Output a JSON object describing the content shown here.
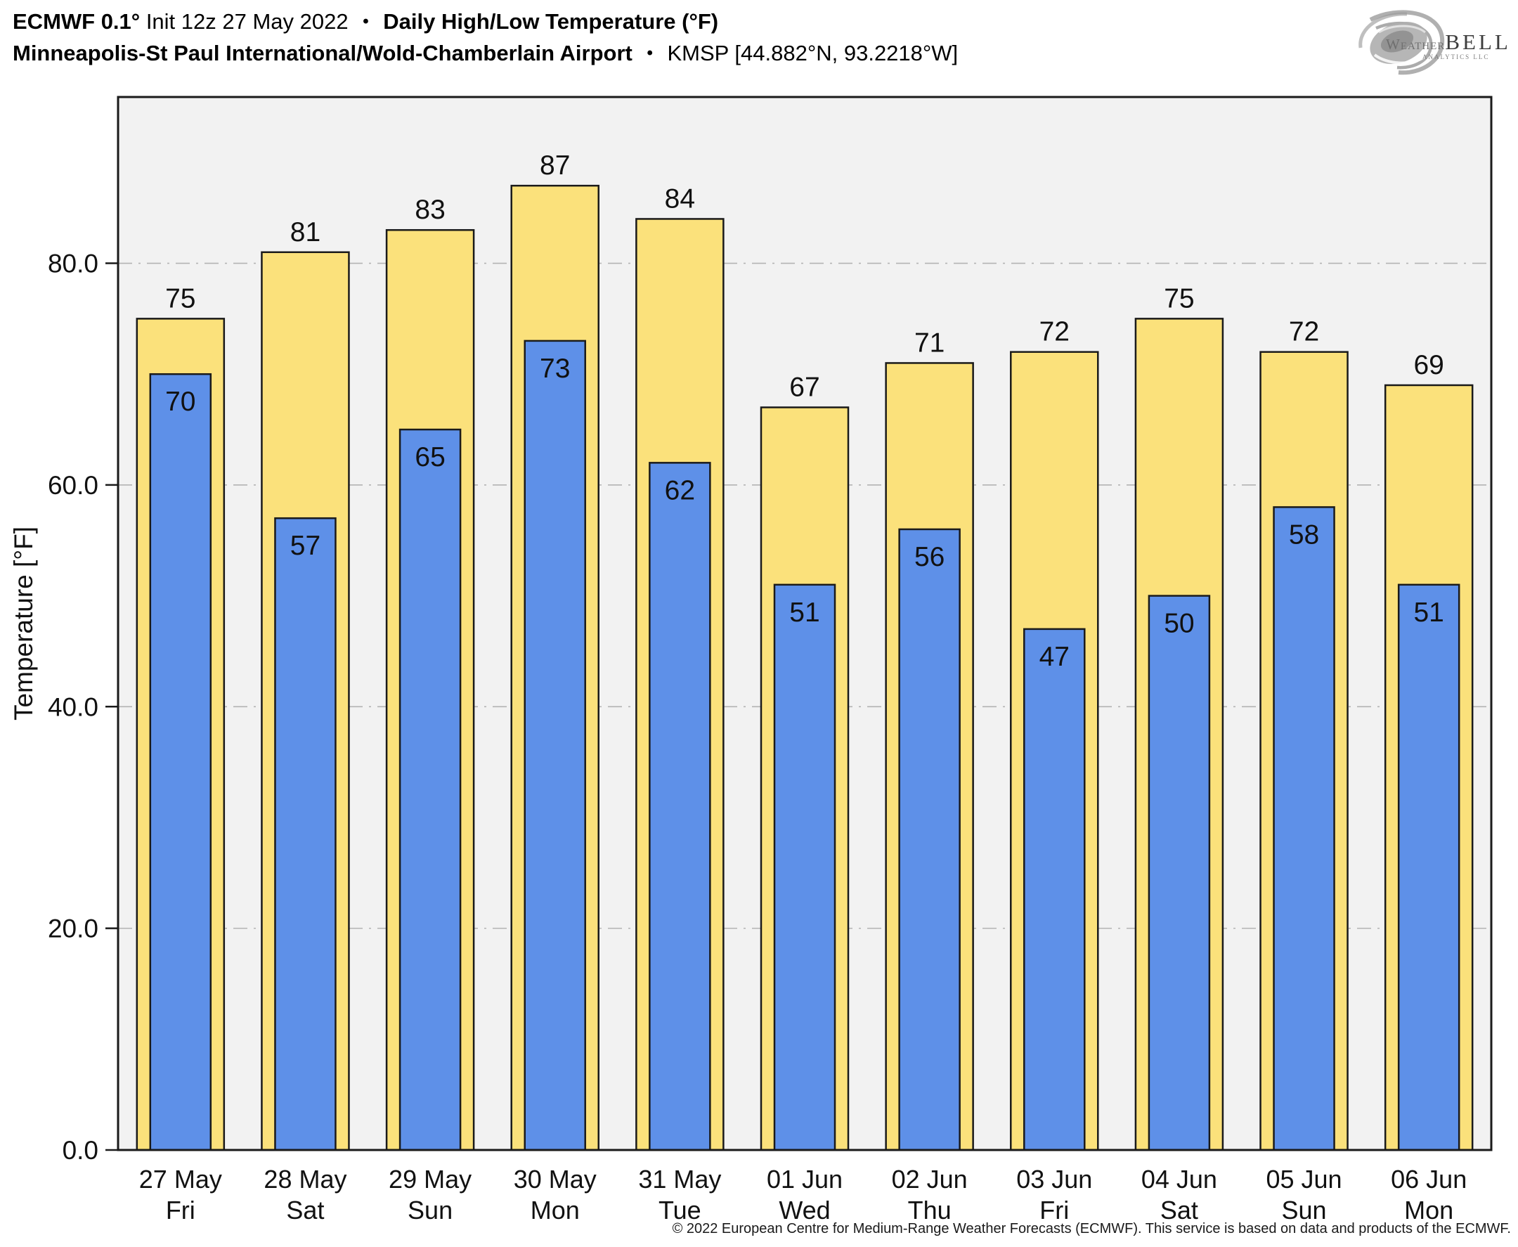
{
  "header": {
    "model": "ECMWF 0.1°",
    "init_label": "Init 12z 27 May 2022",
    "separator": "•",
    "product": "Daily High/Low Temperature (°F)",
    "station": "Minneapolis-St Paul International/Wold-Chamberlain Airport",
    "station_code": "KMSP [44.882°N, 93.2218°W]"
  },
  "logo": {
    "word_weather": "Weather",
    "word_bell": "BELL",
    "subtitle": "Analytics LLC"
  },
  "footer": {
    "copyright": "© 2022 European Centre for Medium-Range Weather Forecasts (ECMWF). This service is based on data and products of the ECMWF."
  },
  "chart_data": {
    "type": "bar",
    "title": "Daily High/Low Temperature (°F)",
    "subtitle": "ECMWF 0.1° Init 12z 27 May 2022 — KMSP Minneapolis-St Paul International/Wold-Chamberlain Airport",
    "xlabel": "",
    "ylabel": "Temperature [°F]",
    "ylim": [
      0,
      95
    ],
    "yticks": [
      0,
      20,
      40,
      60,
      80
    ],
    "ytick_labels": [
      "0.0",
      "20.0",
      "40.0",
      "60.0",
      "80.0"
    ],
    "grid": "horizontal dash-dot gridlines at 20, 40, 60, 80",
    "legend": "none",
    "bar_value_labels": true,
    "categories": [
      "27 May",
      "28 May",
      "29 May",
      "30 May",
      "31 May",
      "01 Jun",
      "02 Jun",
      "03 Jun",
      "04 Jun",
      "05 Jun",
      "06 Jun"
    ],
    "weekdays": [
      "Fri",
      "Sat",
      "Sun",
      "Mon",
      "Tue",
      "Wed",
      "Thu",
      "Fri",
      "Sat",
      "Sun",
      "Mon"
    ],
    "series": [
      {
        "name": "Daily High",
        "color": "#FBE17B",
        "values": [
          75,
          81,
          83,
          87,
          84,
          67,
          71,
          72,
          75,
          72,
          69
        ]
      },
      {
        "name": "Daily Low",
        "color": "#5E90E8",
        "values": [
          70,
          57,
          65,
          73,
          62,
          51,
          56,
          47,
          50,
          58,
          51
        ]
      }
    ],
    "colors": {
      "plot_background": "#F2F2F2",
      "frame": "#1A1A1A",
      "gridline": "#B3B3B3",
      "bar_border": "#1A1A1A",
      "text": "#111111"
    }
  }
}
